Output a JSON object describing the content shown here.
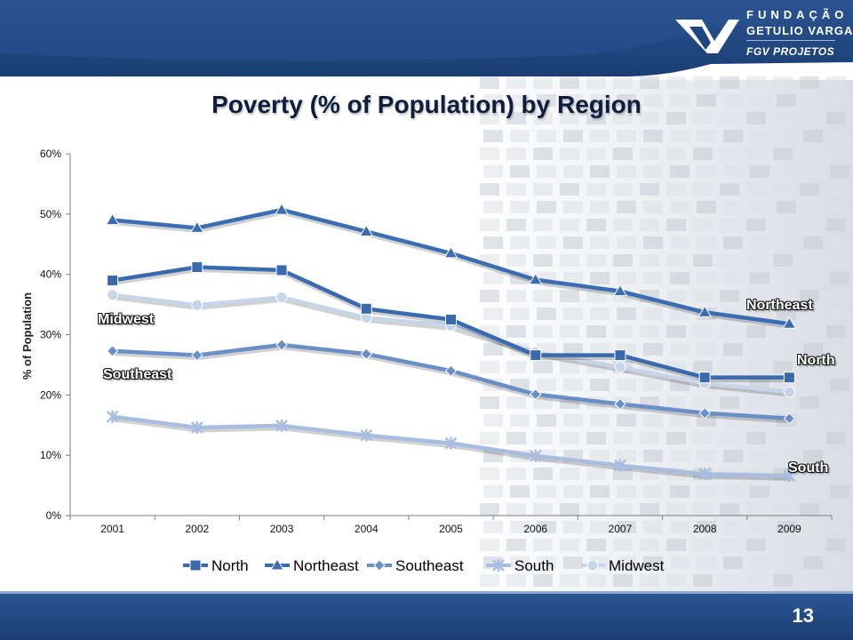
{
  "brand": {
    "line1": "FUNDAÇÃO",
    "line2": "GETULIO VARGAS",
    "line3": "FGV PROJETOS"
  },
  "footer": {
    "page_number": "13"
  },
  "colors": {
    "header_blue": "#1f4680",
    "series_north": "#3a6aae",
    "series_northeast": "#3b6db3",
    "series_southeast": "#6a8fc6",
    "series_south": "#a9bde0",
    "series_midwest": "#c8d4e8"
  },
  "chart_data": {
    "type": "line",
    "title": "Poverty (% of Population) by Region",
    "xlabel": "",
    "ylabel": "% of Population",
    "ylim": [
      0,
      60
    ],
    "yticks": [
      "0%",
      "10%",
      "20%",
      "30%",
      "40%",
      "50%",
      "60%"
    ],
    "grid": false,
    "legend_position": "bottom",
    "categories": [
      "2001",
      "2002",
      "2003",
      "2004",
      "2005",
      "2006",
      "2007",
      "2008",
      "2009"
    ],
    "series": [
      {
        "name": "North",
        "marker": "square",
        "values": [
          39.0,
          41.2,
          40.7,
          34.3,
          32.5,
          26.6,
          26.6,
          22.9,
          22.9
        ]
      },
      {
        "name": "Northeast",
        "marker": "triangle",
        "values": [
          49.0,
          47.7,
          50.7,
          47.1,
          43.5,
          39.1,
          37.2,
          33.7,
          31.8
        ]
      },
      {
        "name": "Southeast",
        "marker": "diamond",
        "values": [
          27.3,
          26.6,
          28.3,
          26.8,
          24.0,
          20.1,
          18.5,
          17.0,
          16.1
        ]
      },
      {
        "name": "South",
        "marker": "star",
        "values": [
          16.4,
          14.6,
          14.9,
          13.3,
          12.0,
          9.9,
          8.3,
          6.9,
          6.6
        ]
      },
      {
        "name": "Midwest",
        "marker": "circle",
        "values": [
          36.6,
          34.9,
          36.2,
          32.8,
          31.5,
          27.1,
          24.6,
          21.9,
          20.5
        ]
      }
    ],
    "annotations": [
      {
        "text": "Midwest",
        "series": "Midwest"
      },
      {
        "text": "Southeast",
        "series": "Southeast"
      },
      {
        "text": "Northeast",
        "series": "Northeast"
      },
      {
        "text": "North",
        "series": "North"
      },
      {
        "text": "South",
        "series": "South"
      }
    ]
  }
}
